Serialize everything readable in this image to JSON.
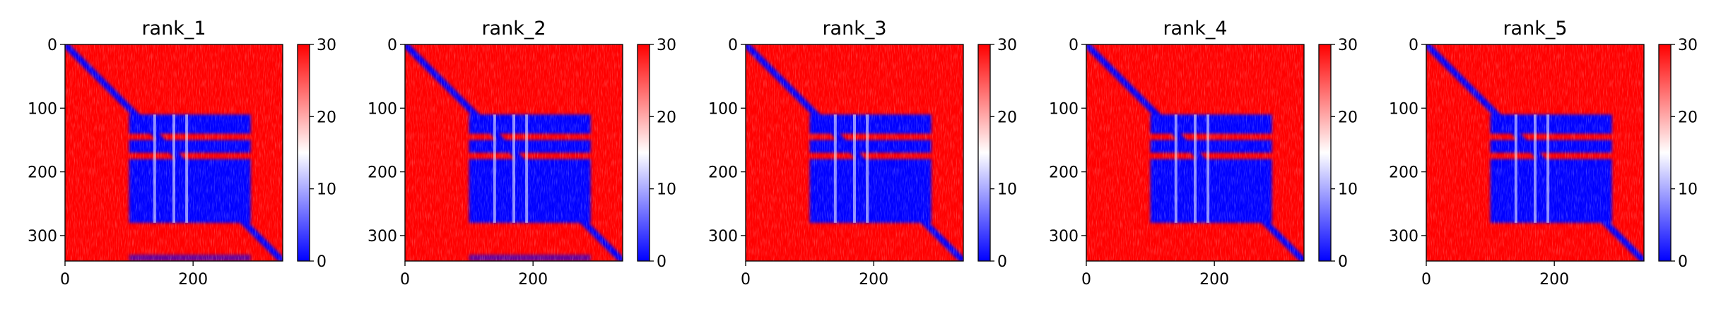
{
  "chart_data": [
    {
      "type": "heatmap",
      "title": "rank_1",
      "matrix_size": 340,
      "x_ticks": [
        0,
        200
      ],
      "y_ticks": [
        0,
        100,
        200,
        300
      ],
      "colorbar": {
        "min": 0,
        "max": 30,
        "ticks": [
          0,
          10,
          20,
          30
        ],
        "colors": [
          "#0000ff",
          "#ffffff",
          "#ff0000"
        ]
      },
      "domain_blocks": [
        [
          110,
          140
        ],
        [
          150,
          170
        ],
        [
          180,
          280
        ]
      ],
      "block_x_range": [
        100,
        290
      ],
      "extra_contacts": [
        [
          330,
          340
        ]
      ]
    },
    {
      "type": "heatmap",
      "title": "rank_2",
      "matrix_size": 340,
      "x_ticks": [
        0,
        200
      ],
      "y_ticks": [
        0,
        100,
        200,
        300
      ],
      "colorbar": {
        "min": 0,
        "max": 30,
        "ticks": [
          0,
          10,
          20,
          30
        ],
        "colors": [
          "#0000ff",
          "#ffffff",
          "#ff0000"
        ]
      },
      "domain_blocks": [
        [
          110,
          140
        ],
        [
          150,
          170
        ],
        [
          180,
          280
        ]
      ],
      "block_x_range": [
        100,
        290
      ],
      "extra_contacts": [
        [
          330,
          340
        ]
      ]
    },
    {
      "type": "heatmap",
      "title": "rank_3",
      "matrix_size": 340,
      "x_ticks": [
        0,
        200
      ],
      "y_ticks": [
        0,
        100,
        200,
        300
      ],
      "colorbar": {
        "min": 0,
        "max": 30,
        "ticks": [
          0,
          10,
          20,
          30
        ],
        "colors": [
          "#0000ff",
          "#ffffff",
          "#ff0000"
        ]
      },
      "domain_blocks": [
        [
          110,
          140
        ],
        [
          150,
          170
        ],
        [
          180,
          280
        ]
      ],
      "block_x_range": [
        100,
        290
      ],
      "extra_contacts": []
    },
    {
      "type": "heatmap",
      "title": "rank_4",
      "matrix_size": 340,
      "x_ticks": [
        0,
        200
      ],
      "y_ticks": [
        0,
        100,
        200,
        300
      ],
      "colorbar": {
        "min": 0,
        "max": 30,
        "ticks": [
          0,
          10,
          20,
          30
        ],
        "colors": [
          "#0000ff",
          "#ffffff",
          "#ff0000"
        ]
      },
      "domain_blocks": [
        [
          110,
          140
        ],
        [
          150,
          170
        ],
        [
          180,
          280
        ]
      ],
      "block_x_range": [
        100,
        290
      ],
      "extra_contacts": []
    },
    {
      "type": "heatmap",
      "title": "rank_5",
      "matrix_size": 340,
      "x_ticks": [
        0,
        200
      ],
      "y_ticks": [
        0,
        100,
        200,
        300
      ],
      "colorbar": {
        "min": 0,
        "max": 30,
        "ticks": [
          0,
          10,
          20,
          30
        ],
        "colors": [
          "#0000ff",
          "#ffffff",
          "#ff0000"
        ]
      },
      "domain_blocks": [
        [
          110,
          140
        ],
        [
          150,
          170
        ],
        [
          180,
          280
        ]
      ],
      "block_x_range": [
        100,
        290
      ],
      "extra_contacts": []
    }
  ]
}
